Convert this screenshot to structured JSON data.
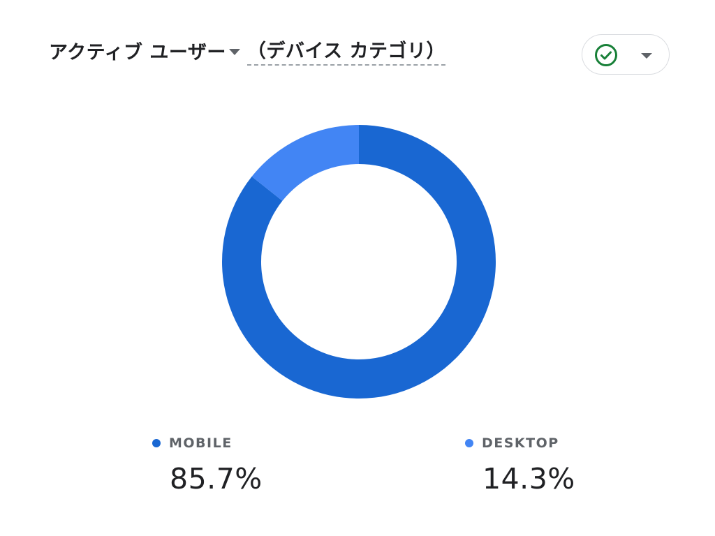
{
  "header": {
    "metric_label": "アクティブ ユーザー",
    "dimension_label": "（デバイス カテゴリ）"
  },
  "colors": {
    "mobile": "#1967d2",
    "desktop": "#4285f4",
    "check": "#188038"
  },
  "icons": {
    "metric_dropdown": "caret-down-icon",
    "status": "check-circle-icon",
    "status_dropdown": "caret-down-icon"
  },
  "chart_data": {
    "type": "pie",
    "style": "donut",
    "categories": [
      "MOBILE",
      "DESKTOP"
    ],
    "values": [
      85.7,
      14.3
    ],
    "value_labels": [
      "85.7%",
      "14.3%"
    ],
    "legend_placement": "bottom"
  }
}
